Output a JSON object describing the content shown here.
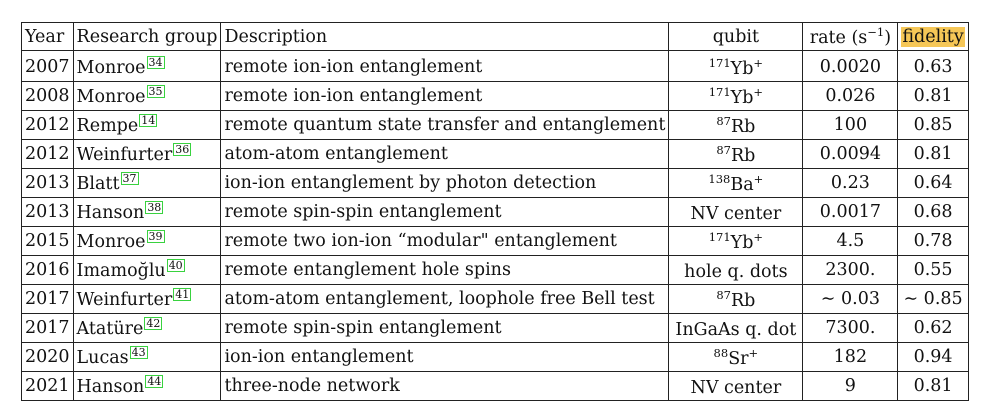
{
  "headers": {
    "year": "Year",
    "group": "Research group",
    "description": "Description",
    "qubit": "qubit",
    "rate": "rate (s",
    "rate_exp": "−1",
    "rate_close": ")",
    "fidelity": "fidelity"
  },
  "rows": [
    {
      "year": "2007",
      "group": "Monroe",
      "ref": "34",
      "description": "remote ion-ion entanglement",
      "qubit_iso": "171",
      "qubit": "Yb",
      "qubit_charge": "+",
      "rate": "0.0020",
      "fidelity": "0.63"
    },
    {
      "year": "2008",
      "group": "Monroe",
      "ref": "35",
      "description": "remote ion-ion entanglement",
      "qubit_iso": "171",
      "qubit": "Yb",
      "qubit_charge": "+",
      "rate": "0.026",
      "fidelity": "0.81"
    },
    {
      "year": "2012",
      "group": "Rempe",
      "ref": "14",
      "description": "remote quantum state transfer and entanglement",
      "qubit_iso": "87",
      "qubit": "Rb",
      "qubit_charge": "",
      "rate": "100",
      "fidelity": "0.85"
    },
    {
      "year": "2012",
      "group": "Weinfurter",
      "ref": "36",
      "description": "atom-atom entanglement",
      "qubit_iso": "87",
      "qubit": "Rb",
      "qubit_charge": "",
      "rate": "0.0094",
      "fidelity": "0.81"
    },
    {
      "year": "2013",
      "group": "Blatt",
      "ref": "37",
      "description": "ion-ion entanglement by photon detection",
      "qubit_iso": "138",
      "qubit": "Ba",
      "qubit_charge": "+",
      "rate": "0.23",
      "fidelity": "0.64"
    },
    {
      "year": "2013",
      "group": "Hanson",
      "ref": "38",
      "description": "remote spin-spin entanglement",
      "qubit_iso": "",
      "qubit": "NV center",
      "qubit_charge": "",
      "rate": "0.0017",
      "fidelity": "0.68"
    },
    {
      "year": "2015",
      "group": "Monroe",
      "ref": "39",
      "description": "remote two ion-ion “modular\" entanglement",
      "qubit_iso": "171",
      "qubit": "Yb",
      "qubit_charge": "+",
      "rate": "4.5",
      "fidelity": "0.78"
    },
    {
      "year": "2016",
      "group": "Imamoğlu",
      "ref": "40",
      "description": "remote entanglement hole spins",
      "qubit_iso": "",
      "qubit": "hole q. dots",
      "qubit_charge": "",
      "rate": "2300.",
      "fidelity": "0.55"
    },
    {
      "year": "2017",
      "group": "Weinfurter",
      "ref": "41",
      "description": "atom-atom entanglement, loophole free Bell test",
      "qubit_iso": "87",
      "qubit": "Rb",
      "qubit_charge": "",
      "rate": "∼ 0.03",
      "fidelity": "∼ 0.85"
    },
    {
      "year": "2017",
      "group": "Atatüre",
      "ref": "42",
      "description": "remote spin-spin entanglement",
      "qubit_iso": "",
      "qubit": "InGaAs q. dot",
      "qubit_charge": "",
      "rate": "7300.",
      "fidelity": "0.62"
    },
    {
      "year": "2020",
      "group": "Lucas",
      "ref": "43",
      "description": "ion-ion entanglement",
      "qubit_iso": "88",
      "qubit": "Sr",
      "qubit_charge": "+",
      "rate": "182",
      "fidelity": "0.94"
    },
    {
      "year": "2021",
      "group": "Hanson",
      "ref": "44",
      "description": "three-node network",
      "qubit_iso": "",
      "qubit": "NV center",
      "qubit_charge": "",
      "rate": "9",
      "fidelity": "0.81"
    }
  ],
  "colors": {
    "highlight": "#f6c757",
    "citation_border": "#39d23f"
  }
}
